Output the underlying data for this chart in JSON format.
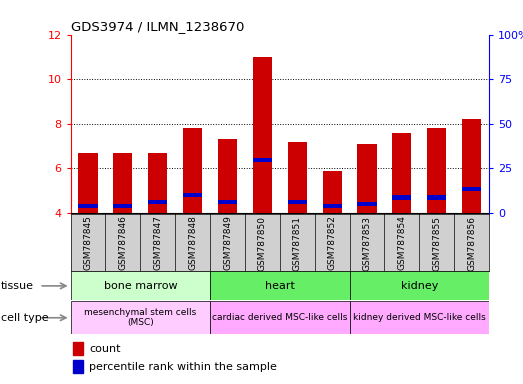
{
  "title": "GDS3974 / ILMN_1238670",
  "samples": [
    "GSM787845",
    "GSM787846",
    "GSM787847",
    "GSM787848",
    "GSM787849",
    "GSM787850",
    "GSM787851",
    "GSM787852",
    "GSM787853",
    "GSM787854",
    "GSM787855",
    "GSM787856"
  ],
  "count_values": [
    6.7,
    6.7,
    6.7,
    7.8,
    7.3,
    11.0,
    7.2,
    5.9,
    7.1,
    7.6,
    7.8,
    8.2
  ],
  "percentile_values": [
    4.3,
    4.3,
    4.5,
    4.8,
    4.5,
    6.4,
    4.5,
    4.3,
    4.4,
    4.7,
    4.7,
    5.1
  ],
  "ylim_left": [
    4,
    12
  ],
  "ylim_right": [
    0,
    100
  ],
  "yticks_left": [
    4,
    6,
    8,
    10,
    12
  ],
  "yticks_right": [
    0,
    25,
    50,
    75,
    100
  ],
  "ytick_labels_right": [
    "0",
    "25",
    "50",
    "75",
    "100%"
  ],
  "bar_color": "#cc0000",
  "percentile_color": "#0000cc",
  "bar_width": 0.55,
  "grid_lines": [
    6,
    8,
    10
  ],
  "tissue_data": [
    {
      "label": "bone marrow",
      "start": 0,
      "end": 4,
      "color": "#ccffcc"
    },
    {
      "label": "heart",
      "start": 4,
      "end": 8,
      "color": "#66ee66"
    },
    {
      "label": "kidney",
      "start": 8,
      "end": 12,
      "color": "#66ee66"
    }
  ],
  "celltype_data": [
    {
      "label": "mesenchymal stem cells\n(MSC)",
      "start": 0,
      "end": 4,
      "color": "#ffccff"
    },
    {
      "label": "cardiac derived MSC-like cells",
      "start": 4,
      "end": 8,
      "color": "#ffaaff"
    },
    {
      "label": "kidney derived MSC-like cells",
      "start": 8,
      "end": 12,
      "color": "#ffaaff"
    }
  ],
  "sample_label_bg": "#d0d0d0",
  "legend_count_label": "count",
  "legend_percentile_label": "percentile rank within the sample"
}
